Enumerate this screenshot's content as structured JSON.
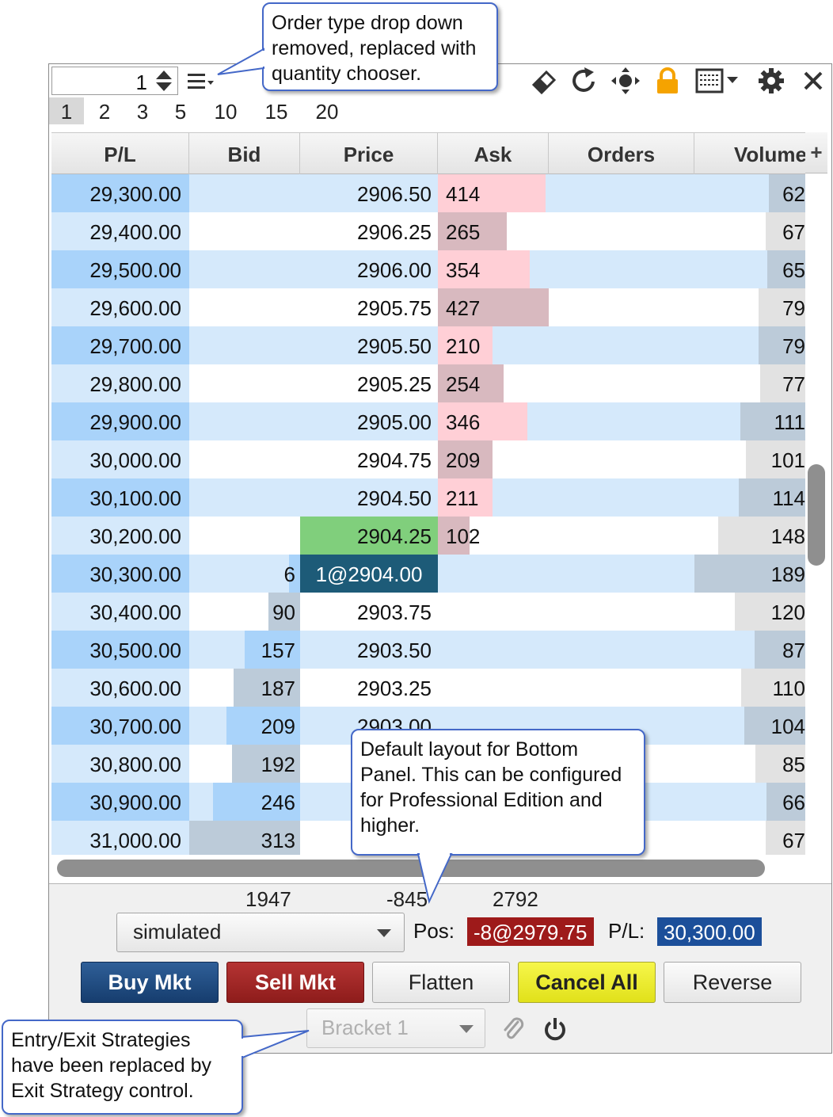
{
  "toolbar": {
    "quantity_value": "1",
    "icons": [
      "menu-icon",
      "eraser-icon",
      "refresh-icon",
      "center-icon",
      "lock-icon",
      "layout-icon",
      "gear-icon",
      "close-icon"
    ],
    "lock_color": "#f5a300"
  },
  "quantity_options": [
    "1",
    "2",
    "3",
    "5",
    "10",
    "15",
    "20"
  ],
  "selected_quantity_index": 0,
  "ladder": {
    "columns": [
      "P/L",
      "Bid",
      "Price",
      "Ask",
      "Orders",
      "Volume"
    ],
    "add_column": "+",
    "rows": [
      {
        "pl": "29,300.00",
        "bid": "",
        "price": "2906.50",
        "ask": "414",
        "orders": "",
        "volume": "62"
      },
      {
        "pl": "29,400.00",
        "bid": "",
        "price": "2906.25",
        "ask": "265",
        "orders": "",
        "volume": "67"
      },
      {
        "pl": "29,500.00",
        "bid": "",
        "price": "2906.00",
        "ask": "354",
        "orders": "",
        "volume": "65"
      },
      {
        "pl": "29,600.00",
        "bid": "",
        "price": "2905.75",
        "ask": "427",
        "orders": "",
        "volume": "79"
      },
      {
        "pl": "29,700.00",
        "bid": "",
        "price": "2905.50",
        "ask": "210",
        "orders": "",
        "volume": "79"
      },
      {
        "pl": "29,800.00",
        "bid": "",
        "price": "2905.25",
        "ask": "254",
        "orders": "",
        "volume": "77"
      },
      {
        "pl": "29,900.00",
        "bid": "",
        "price": "2905.00",
        "ask": "346",
        "orders": "",
        "volume": "111"
      },
      {
        "pl": "30,000.00",
        "bid": "",
        "price": "2904.75",
        "ask": "209",
        "orders": "",
        "volume": "101"
      },
      {
        "pl": "30,100.00",
        "bid": "",
        "price": "2904.50",
        "ask": "211",
        "orders": "",
        "volume": "114"
      },
      {
        "pl": "30,200.00",
        "bid": "",
        "price": "2904.25",
        "ask": "102",
        "orders": "",
        "volume": "148"
      },
      {
        "pl": "30,300.00",
        "bid": "6",
        "price": "1@2904.00",
        "ask": "",
        "orders": "",
        "volume": "189"
      },
      {
        "pl": "30,400.00",
        "bid": "90",
        "price": "2903.75",
        "ask": "",
        "orders": "",
        "volume": "120"
      },
      {
        "pl": "30,500.00",
        "bid": "157",
        "price": "2903.50",
        "ask": "",
        "orders": "",
        "volume": "87"
      },
      {
        "pl": "30,600.00",
        "bid": "187",
        "price": "2903.25",
        "ask": "",
        "orders": "",
        "volume": "110"
      },
      {
        "pl": "30,700.00",
        "bid": "209",
        "price": "2903.00",
        "ask": "",
        "orders": "",
        "volume": "104"
      },
      {
        "pl": "30,800.00",
        "bid": "192",
        "price": "",
        "ask": "",
        "orders": "",
        "volume": "85"
      },
      {
        "pl": "30,900.00",
        "bid": "246",
        "price": "",
        "ask": "",
        "orders": "",
        "volume": "66"
      },
      {
        "pl": "31,000.00",
        "bid": "313",
        "price": "",
        "ask": "",
        "orders": "",
        "volume": "67"
      }
    ],
    "last_trade_price": "2904.25",
    "working_order_price": "1@2904.00",
    "colors": {
      "pl_dark": "#a9d3fa",
      "pl_light": "#d5e9fb",
      "ask_bar": "#ffcfd6",
      "ask_bar_dark": "#d8b9bf",
      "bid_bar": "#a9d3fa",
      "bid_bar_dark": "#bccbd9",
      "last_trade": "#80cf7c",
      "working_order": "#1d5b78"
    }
  },
  "totals": {
    "bid": "1947",
    "middle": "-845",
    "ask": "2792"
  },
  "account": {
    "selected": "simulated"
  },
  "position": {
    "label": "Pos:",
    "value": "-8@2979.75",
    "pl_label": "P/L:",
    "pl_value": "30,300.00",
    "pos_color": "#9e1a1a",
    "pl_color": "#1c4f9a"
  },
  "buttons": {
    "buy": "Buy Mkt",
    "sell": "Sell Mkt",
    "flatten": "Flatten",
    "cancel_all": "Cancel All",
    "reverse": "Reverse"
  },
  "strategy": {
    "selected": "Bracket 1"
  },
  "callouts": {
    "top": "Order type drop down removed, replaced with quantity chooser.",
    "bottom_panel": "Default layout for Bottom Panel.  This can be configured for Professional Edition and higher.",
    "strategy": "Entry/Exit Strategies have been replaced by Exit Strategy control."
  }
}
